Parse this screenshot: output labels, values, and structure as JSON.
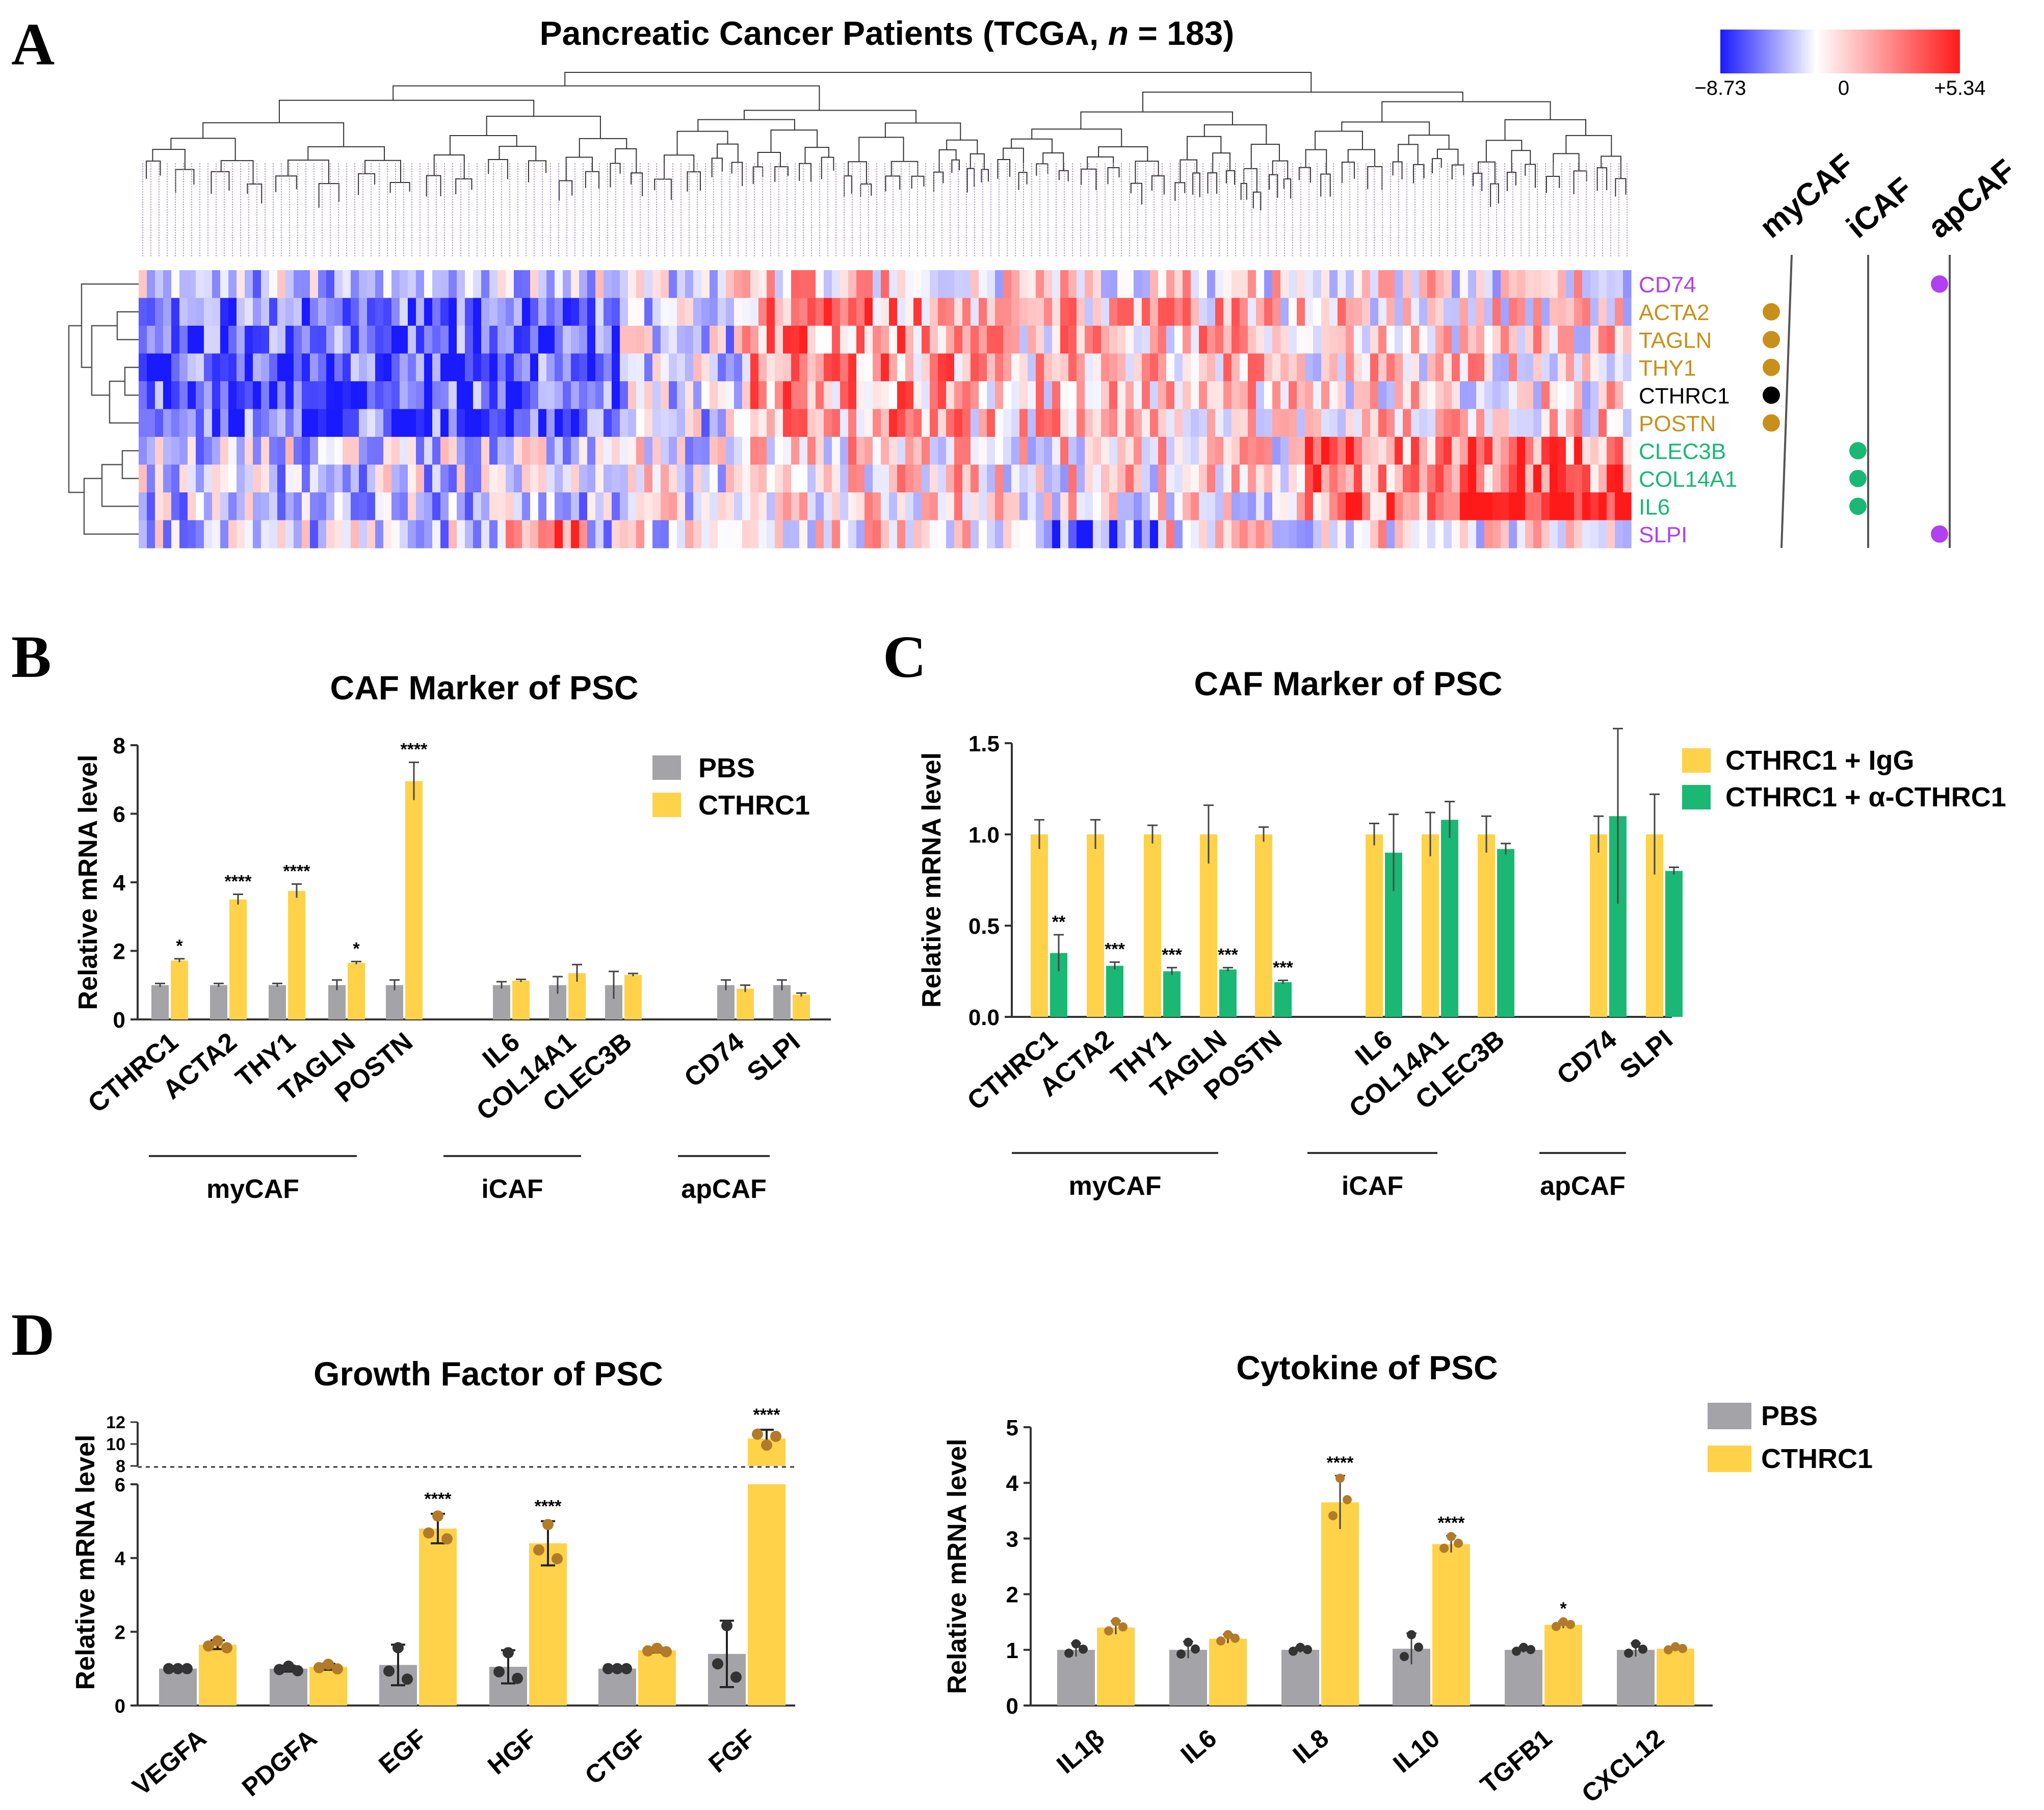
{
  "colors": {
    "blue": "#1a1aff",
    "red": "#ff1a1a",
    "gray": "#a3a3a8",
    "yellow": "#ffd24a",
    "green": "#1ab874",
    "mycaf": "#c8901a",
    "icaf": "#1ab874",
    "apcaf": "#b040f0",
    "cthrc1": "#000000",
    "dot": "#b37a2a",
    "error": "#444444"
  },
  "panel_letters": [
    "A",
    "B",
    "C",
    "D"
  ],
  "chart_data": [
    {
      "id": "A",
      "type": "heatmap",
      "title_prefix": "Pancreatic Cancer Patients (TCGA, ",
      "title_n": "n",
      "title_suffix": " = 183)",
      "colorbar": {
        "min": -8.73,
        "max": 5.34,
        "labels": [
          "−8.73",
          "0",
          "+5.34"
        ]
      },
      "sample_count": 183,
      "genes": [
        "CD74",
        "ACTA2",
        "TAGLN",
        "THY1",
        "CTHRC1",
        "POSTN",
        "CLEC3B",
        "COL14A1",
        "IL6",
        "SLPI"
      ],
      "gene_groups": [
        "apCAF",
        "myCAF",
        "myCAF",
        "myCAF",
        "CTHRC1",
        "myCAF",
        "iCAF",
        "iCAF",
        "iCAF",
        "apCAF"
      ],
      "caf_columns": [
        "myCAF",
        "iCAF",
        "apCAF"
      ]
    },
    {
      "id": "B",
      "type": "bar",
      "title": "CAF Marker of PSC",
      "ylabel": "Relative mRNA level",
      "ylim": [
        0,
        8
      ],
      "yticks": [
        0,
        2,
        4,
        6,
        8
      ],
      "categories": [
        "CTHRC1",
        "ACTA2",
        "THY1",
        "TAGLN",
        "POSTN",
        "IL6",
        "COL14A1",
        "CLEC3B",
        "CD74",
        "SLPI"
      ],
      "groups": [
        {
          "label": "myCAF",
          "members": [
            "CTHRC1",
            "ACTA2",
            "THY1",
            "TAGLN",
            "POSTN"
          ]
        },
        {
          "label": "iCAF",
          "members": [
            "IL6",
            "COL14A1",
            "CLEC3B"
          ]
        },
        {
          "label": "apCAF",
          "members": [
            "CD74",
            "SLPI"
          ]
        }
      ],
      "series": [
        {
          "name": "PBS",
          "color": "gray",
          "values": [
            1.0,
            1.0,
            1.0,
            1.0,
            1.0,
            1.0,
            1.0,
            1.0,
            1.0,
            1.0
          ],
          "errors": [
            0.05,
            0.05,
            0.05,
            0.15,
            0.15,
            0.1,
            0.25,
            0.4,
            0.15,
            0.15
          ]
        },
        {
          "name": "CTHRC1",
          "color": "yellow",
          "values": [
            1.72,
            3.5,
            3.75,
            1.65,
            6.95,
            1.13,
            1.35,
            1.3,
            0.9,
            0.72
          ],
          "errors": [
            0.05,
            0.15,
            0.2,
            0.04,
            0.55,
            0.04,
            0.25,
            0.04,
            0.1,
            0.05
          ]
        }
      ],
      "significance": [
        "*",
        "****",
        "****",
        "*",
        "****",
        "",
        "",
        "",
        "",
        ""
      ]
    },
    {
      "id": "C",
      "type": "bar",
      "title": "CAF Marker of PSC",
      "ylabel": "Relative mRNA level",
      "ylim": [
        0,
        1.5
      ],
      "yticks": [
        0.0,
        0.5,
        1.0,
        1.5
      ],
      "ytick_labels": [
        "0.0",
        "0.5",
        "1.0",
        "1.5"
      ],
      "categories": [
        "CTHRC1",
        "ACTA2",
        "THY1",
        "TAGLN",
        "POSTN",
        "IL6",
        "COL14A1",
        "CLEC3B",
        "CD74",
        "SLPI"
      ],
      "groups": [
        {
          "label": "myCAF",
          "members": [
            "CTHRC1",
            "ACTA2",
            "THY1",
            "TAGLN",
            "POSTN"
          ]
        },
        {
          "label": "iCAF",
          "members": [
            "IL6",
            "COL14A1",
            "CLEC3B"
          ]
        },
        {
          "label": "apCAF",
          "members": [
            "CD74",
            "SLPI"
          ]
        }
      ],
      "series": [
        {
          "name": "CTHRC1 + IgG",
          "color": "yellow",
          "values": [
            1.0,
            1.0,
            1.0,
            1.0,
            1.0,
            1.0,
            1.0,
            1.0,
            1.0,
            1.0
          ],
          "errors": [
            0.08,
            0.08,
            0.05,
            0.16,
            0.04,
            0.06,
            0.12,
            0.1,
            0.1,
            0.22
          ]
        },
        {
          "name": "CTHRC1 + α-CTHRC1",
          "color": "green",
          "values": [
            0.35,
            0.28,
            0.25,
            0.26,
            0.19,
            0.9,
            1.08,
            0.92,
            1.1,
            0.8
          ],
          "errors": [
            0.1,
            0.02,
            0.02,
            0.01,
            0.01,
            0.21,
            0.1,
            0.03,
            0.48,
            0.02
          ]
        }
      ],
      "significance": [
        "**",
        "***",
        "***",
        "***",
        "***",
        "",
        "",
        "",
        "",
        ""
      ]
    },
    {
      "id": "D1",
      "type": "bar",
      "title": "Growth Factor of PSC",
      "ylabel": "Relative mRNA level",
      "ylim": [
        0,
        12
      ],
      "axis_break": [
        6,
        8
      ],
      "yticks_lower": [
        0,
        2,
        4,
        6
      ],
      "yticks_upper": [
        8,
        10,
        12
      ],
      "categories": [
        "VEGFA",
        "PDGFA",
        "EGF",
        "HGF",
        "CTGF",
        "FGF"
      ],
      "series": [
        {
          "name": "PBS",
          "color": "gray",
          "values": [
            1.0,
            1.0,
            1.1,
            1.05,
            1.0,
            1.4
          ],
          "errors": [
            0.0,
            0.08,
            0.55,
            0.45,
            0.0,
            0.9
          ]
        },
        {
          "name": "CTHRC1",
          "color": "yellow",
          "values": [
            1.65,
            1.05,
            4.8,
            4.4,
            1.5,
            10.5
          ],
          "errors": [
            0.12,
            0.08,
            0.4,
            0.6,
            0.06,
            0.8
          ]
        }
      ],
      "significance": [
        "",
        "",
        "****",
        "****",
        "",
        "****"
      ]
    },
    {
      "id": "D2",
      "type": "bar",
      "title": "Cytokine of PSC",
      "ylabel": "Relative mRNA level",
      "ylim": [
        0,
        5
      ],
      "yticks": [
        0,
        1,
        2,
        3,
        4,
        5
      ],
      "categories": [
        "IL1β",
        "IL6",
        "IL8",
        "IL10",
        "TGFB1",
        "CXCL12"
      ],
      "series": [
        {
          "name": "PBS",
          "color": "gray",
          "values": [
            1.0,
            1.0,
            1.0,
            1.02,
            1.0,
            1.0
          ],
          "errors": [
            0.12,
            0.15,
            0.05,
            0.28,
            0.05,
            0.12
          ]
        },
        {
          "name": "CTHRC1",
          "color": "yellow",
          "values": [
            1.4,
            1.2,
            3.65,
            2.9,
            1.45,
            1.02
          ],
          "errors": [
            0.12,
            0.08,
            0.48,
            0.15,
            0.06,
            0.04
          ]
        }
      ],
      "significance": [
        "",
        "",
        "****",
        "****",
        "*",
        ""
      ]
    }
  ]
}
